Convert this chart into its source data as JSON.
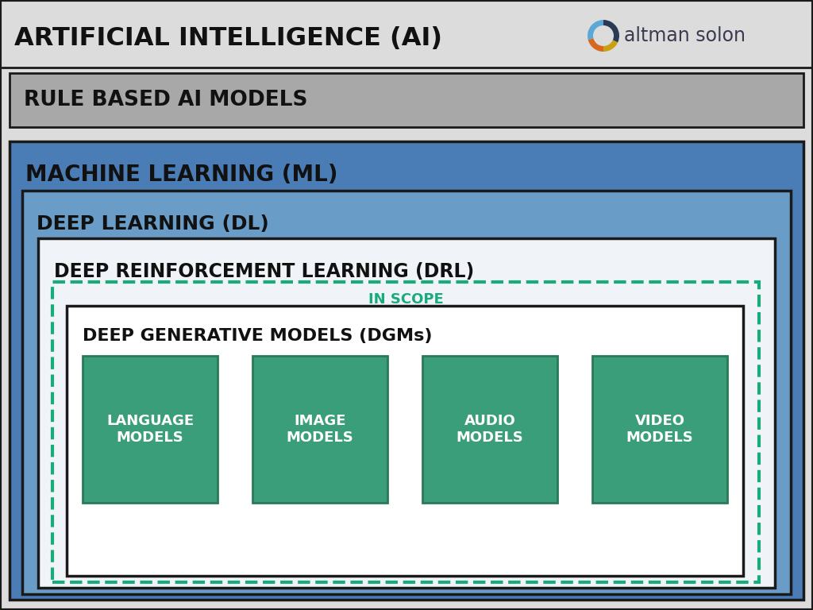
{
  "title": "ARTIFICIAL INTELLIGENCE (AI)",
  "logo_text": "altman solon",
  "bg_color": "#dcdcdc",
  "outer_border_color": "#1a1a1a",
  "rule_based_label": "RULE BASED AI MODELS",
  "rule_based_bg": "#a8a8a8",
  "rule_based_gradient_top": "#c8c8c8",
  "ml_label": "MACHINE LEARNING (ML)",
  "ml_bg": "#4a7db5",
  "dl_label": "DEEP LEARNING (DL)",
  "dl_bg": "#6a9cc8",
  "drl_label": "DEEP REINFORCEMENT LEARNING (DRL)",
  "drl_bg": "#f0f4f8",
  "drl_border": "#1a1a1a",
  "in_scope_label": "IN SCOPE",
  "in_scope_color": "#1aab7a",
  "dgm_label": "DEEP GENERATIVE MODELS (DGMs)",
  "dgm_bg": "#ffffff",
  "dgm_border": "#1a1a1a",
  "model_boxes": [
    "LANGUAGE\nMODELS",
    "IMAGE\nMODELS",
    "AUDIO\nMODELS",
    "VIDEO\nMODELS"
  ],
  "model_box_bg": "#3a9e7a",
  "model_box_border": "#2a7a5a",
  "text_color_dark": "#111111",
  "text_color_white": "#ffffff",
  "dashed_border_color": "#1aab7a",
  "logo_blue": "#5ba8d5",
  "logo_dark": "#2a3a55",
  "logo_orange": "#d86820",
  "logo_yellow": "#c8a010"
}
